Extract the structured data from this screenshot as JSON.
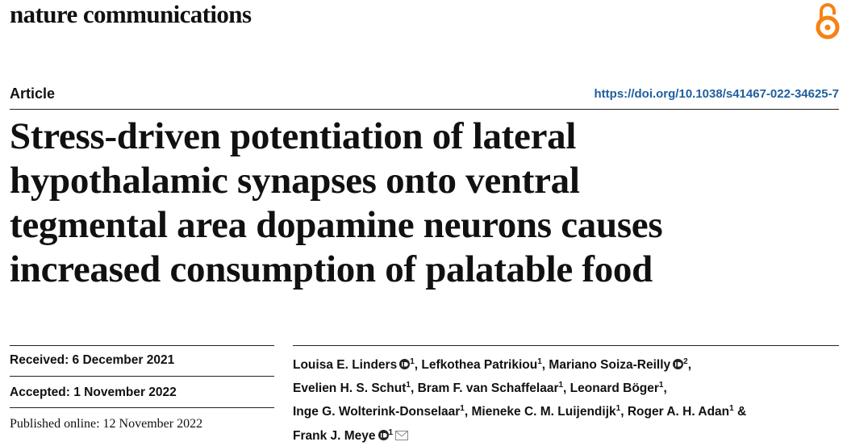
{
  "header": {
    "journal": "nature communications",
    "article_type": "Article",
    "doi": "https://doi.org/10.1038/s41467-022-34625-7"
  },
  "title": {
    "lines": [
      "Stress-driven potentiation of lateral",
      "hypothalamic synapses onto ventral",
      "tegmental area dopamine neurons causes",
      "increased consumption of palatable food"
    ]
  },
  "dates": {
    "received": "Received: 6 December 2021",
    "accepted": "Accepted: 1 November 2022",
    "published": "Published online: 12 November 2022"
  },
  "authors": [
    {
      "name": "Louisa E. Linders",
      "affiliation": "1"
    },
    {
      "name": "Lefkothea Patrikiou",
      "affiliation": "1"
    },
    {
      "name": "Mariano Soiza-Reilly",
      "affiliation": "2"
    },
    {
      "name": "Evelien H. S. Schut",
      "affiliation": "1"
    },
    {
      "name": "Bram F. van Schaffelaar",
      "affiliation": "1"
    },
    {
      "name": "Leonard Böger",
      "affiliation": "1"
    },
    {
      "name": "Inge G. Wolterink-Donselaar",
      "affiliation": "1"
    },
    {
      "name": "Mieneke C. M. Luijendijk",
      "affiliation": "1"
    },
    {
      "name": "Roger A. H. Adan",
      "affiliation": "1"
    },
    {
      "name": "Frank J. Meye",
      "affiliation": "1"
    }
  ],
  "author_conjunction": "&"
}
